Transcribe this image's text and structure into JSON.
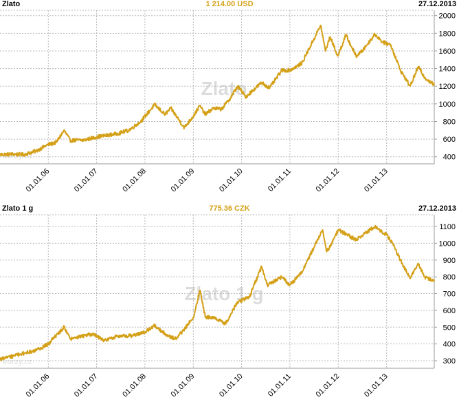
{
  "colors": {
    "line": "#d4a017",
    "price": "#d4a017",
    "grid": "#b8b8b8",
    "watermark": "#dcdcdc"
  },
  "site_watermark": "kurzy.cz",
  "chart_data": [
    {
      "type": "line",
      "title": "Zlato",
      "current_value": "1 214.00 USD",
      "date": "27.12.2013",
      "watermark": "Zlato",
      "x_tick_labels": [
        "01.01.06",
        "01.01.07",
        "01.01.08",
        "01.01.09",
        "01.01.10",
        "01.01.11",
        "01.01.12",
        "01.01.13"
      ],
      "y_tick_labels": [
        "400",
        "600",
        "800",
        "1000",
        "1200",
        "1400",
        "1600",
        "1800",
        "2000"
      ],
      "xlim": [
        "2005-01-01",
        "2013-12-27"
      ],
      "ylim": [
        320,
        2060
      ],
      "grid": true,
      "y_axis_side": "right",
      "series": [
        {
          "points": [
            [
              "2005-01-01",
              425
            ],
            [
              "2005-04-01",
              430
            ],
            [
              "2005-07-01",
              425
            ],
            [
              "2005-10-01",
              465
            ],
            [
              "2006-01-01",
              540
            ],
            [
              "2006-03-01",
              560
            ],
            [
              "2006-05-01",
              700
            ],
            [
              "2006-06-15",
              585
            ],
            [
              "2006-10-01",
              590
            ],
            [
              "2007-01-01",
              625
            ],
            [
              "2007-06-01",
              660
            ],
            [
              "2007-09-01",
              700
            ],
            [
              "2007-12-01",
              800
            ],
            [
              "2008-03-15",
              990
            ],
            [
              "2008-06-01",
              880
            ],
            [
              "2008-07-15",
              950
            ],
            [
              "2008-10-25",
              730
            ],
            [
              "2009-01-01",
              860
            ],
            [
              "2009-02-20",
              980
            ],
            [
              "2009-04-01",
              880
            ],
            [
              "2009-06-01",
              950
            ],
            [
              "2009-08-01",
              940
            ],
            [
              "2009-10-01",
              1050
            ],
            [
              "2009-12-02",
              1200
            ],
            [
              "2010-02-01",
              1080
            ],
            [
              "2010-06-01",
              1240
            ],
            [
              "2010-08-01",
              1180
            ],
            [
              "2010-11-01",
              1380
            ],
            [
              "2011-01-01",
              1380
            ],
            [
              "2011-04-01",
              1460
            ],
            [
              "2011-08-22",
              1890
            ],
            [
              "2011-09-26",
              1600
            ],
            [
              "2011-11-01",
              1760
            ],
            [
              "2011-12-29",
              1540
            ],
            [
              "2012-02-28",
              1780
            ],
            [
              "2012-05-15",
              1540
            ],
            [
              "2012-07-01",
              1600
            ],
            [
              "2012-10-05",
              1790
            ],
            [
              "2012-12-01",
              1700
            ],
            [
              "2013-02-01",
              1670
            ],
            [
              "2013-04-15",
              1380
            ],
            [
              "2013-06-28",
              1200
            ],
            [
              "2013-08-28",
              1420
            ],
            [
              "2013-10-15",
              1300
            ],
            [
              "2013-12-27",
              1214
            ]
          ]
        }
      ]
    },
    {
      "type": "line",
      "title": "Zlato 1 g",
      "current_value": "775.36 CZK",
      "date": "27.12.2013",
      "watermark": "Zlato 1 g",
      "x_tick_labels": [
        "01.01.06",
        "01.01.07",
        "01.01.08",
        "01.01.09",
        "01.01.10",
        "01.01.11",
        "01.01.12",
        "01.01.13"
      ],
      "y_tick_labels": [
        "300",
        "400",
        "500",
        "600",
        "700",
        "800",
        "900",
        "1000",
        "1100"
      ],
      "xlim": [
        "2005-01-01",
        "2013-12-27"
      ],
      "ylim": [
        255,
        1170
      ],
      "grid": true,
      "y_axis_side": "right",
      "series": [
        {
          "points": [
            [
              "2005-01-01",
              310
            ],
            [
              "2005-04-01",
              325
            ],
            [
              "2005-07-01",
              345
            ],
            [
              "2005-10-01",
              360
            ],
            [
              "2006-01-01",
              400
            ],
            [
              "2006-05-01",
              500
            ],
            [
              "2006-06-15",
              430
            ],
            [
              "2006-12-01",
              460
            ],
            [
              "2007-03-01",
              420
            ],
            [
              "2007-06-01",
              445
            ],
            [
              "2007-10-01",
              450
            ],
            [
              "2008-01-01",
              470
            ],
            [
              "2008-03-15",
              510
            ],
            [
              "2008-06-01",
              460
            ],
            [
              "2008-08-15",
              430
            ],
            [
              "2008-10-20",
              480
            ],
            [
              "2009-01-01",
              560
            ],
            [
              "2009-02-20",
              720
            ],
            [
              "2009-04-01",
              560
            ],
            [
              "2009-06-01",
              560
            ],
            [
              "2009-09-01",
              520
            ],
            [
              "2009-12-02",
              650
            ],
            [
              "2010-03-01",
              680
            ],
            [
              "2010-06-01",
              860
            ],
            [
              "2010-07-15",
              750
            ],
            [
              "2010-11-01",
              800
            ],
            [
              "2011-01-01",
              750
            ],
            [
              "2011-04-01",
              830
            ],
            [
              "2011-09-05",
              1080
            ],
            [
              "2011-10-05",
              950
            ],
            [
              "2011-11-15",
              1000
            ],
            [
              "2012-01-01",
              1080
            ],
            [
              "2012-05-15",
              1020
            ],
            [
              "2012-10-05",
              1100
            ],
            [
              "2013-01-01",
              1050
            ],
            [
              "2013-02-15",
              1000
            ],
            [
              "2013-04-15",
              900
            ],
            [
              "2013-06-28",
              790
            ],
            [
              "2013-08-28",
              880
            ],
            [
              "2013-10-15",
              800
            ],
            [
              "2013-12-27",
              775
            ]
          ]
        }
      ]
    }
  ]
}
